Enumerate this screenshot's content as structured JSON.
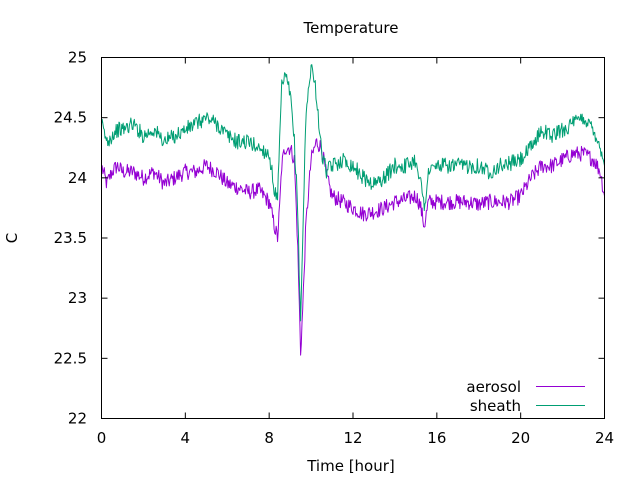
{
  "chart_data": {
    "type": "line",
    "title": "Temperature",
    "xlabel": "Time [hour]",
    "ylabel": "C",
    "xlim": [
      0,
      24
    ],
    "ylim": [
      22,
      25
    ],
    "xticks": [
      0,
      4,
      8,
      12,
      16,
      20,
      24
    ],
    "yticks": [
      22,
      22.5,
      23,
      23.5,
      24,
      24.5,
      25
    ],
    "xtick_labels": [
      "0",
      "4",
      "8",
      "12",
      "16",
      "20",
      "24"
    ],
    "ytick_labels": [
      "22",
      "22.5",
      "23",
      "23.5",
      "24",
      "24.5",
      "25"
    ],
    "grid": false,
    "legend_position": "bottom-right",
    "series": [
      {
        "name": "aerosol",
        "color": "#9400d3",
        "x": [
          0,
          0.25,
          0.5,
          0.75,
          1,
          1.5,
          2,
          2.5,
          3,
          3.5,
          4,
          4.5,
          5,
          5.5,
          6,
          6.5,
          7,
          7.5,
          8,
          8.25,
          8.4,
          8.5,
          8.6,
          8.75,
          9,
          9.2,
          9.35,
          9.5,
          9.6,
          9.75,
          10,
          10.25,
          10.5,
          10.75,
          11,
          11.5,
          12,
          12.5,
          13,
          13.5,
          14,
          14.5,
          15,
          15.2,
          15.4,
          15.6,
          16,
          16.5,
          17,
          17.5,
          18,
          18.5,
          19,
          19.5,
          20,
          20.5,
          21,
          21.5,
          22,
          22.5,
          23,
          23.5,
          23.8,
          24
        ],
        "y": [
          24.1,
          23.95,
          24.05,
          24.1,
          24.05,
          24.05,
          24.0,
          24.05,
          23.95,
          24.0,
          24.05,
          24.05,
          24.1,
          24.05,
          23.95,
          23.92,
          23.88,
          23.9,
          23.8,
          23.6,
          23.5,
          23.75,
          24.1,
          24.25,
          24.25,
          24.15,
          23.5,
          22.55,
          22.9,
          23.6,
          24.15,
          24.3,
          24.25,
          24.0,
          23.85,
          23.8,
          23.75,
          23.7,
          23.72,
          23.75,
          23.8,
          23.82,
          23.85,
          23.78,
          23.6,
          23.8,
          23.8,
          23.8,
          23.8,
          23.8,
          23.78,
          23.8,
          23.8,
          23.8,
          23.85,
          24.0,
          24.1,
          24.1,
          24.15,
          24.2,
          24.2,
          24.15,
          24.05,
          23.85
        ]
      },
      {
        "name": "sheath",
        "color": "#009e73",
        "x": [
          0,
          0.25,
          0.5,
          0.75,
          1,
          1.5,
          2,
          2.5,
          3,
          3.5,
          4,
          4.5,
          5,
          5.5,
          6,
          6.5,
          7,
          7.5,
          8,
          8.25,
          8.4,
          8.5,
          8.6,
          8.75,
          9,
          9.2,
          9.35,
          9.5,
          9.6,
          9.75,
          10,
          10.25,
          10.5,
          10.75,
          11,
          11.5,
          12,
          12.5,
          13,
          13.5,
          14,
          14.5,
          15,
          15.2,
          15.4,
          15.6,
          16,
          16.5,
          17,
          17.5,
          18,
          18.5,
          19,
          19.5,
          20,
          20.5,
          21,
          21.5,
          22,
          22.5,
          23,
          23.5,
          23.8,
          24
        ],
        "y": [
          24.45,
          24.3,
          24.35,
          24.4,
          24.4,
          24.45,
          24.35,
          24.4,
          24.3,
          24.35,
          24.4,
          24.45,
          24.5,
          24.45,
          24.35,
          24.3,
          24.3,
          24.25,
          24.2,
          23.9,
          23.8,
          24.3,
          24.75,
          24.85,
          24.7,
          24.3,
          23.8,
          22.8,
          23.5,
          24.5,
          24.95,
          24.7,
          24.2,
          24.05,
          24.1,
          24.15,
          24.1,
          24.0,
          23.95,
          24.0,
          24.1,
          24.1,
          24.15,
          24.0,
          23.75,
          24.05,
          24.1,
          24.1,
          24.1,
          24.1,
          24.1,
          24.05,
          24.1,
          24.12,
          24.15,
          24.25,
          24.4,
          24.35,
          24.4,
          24.45,
          24.5,
          24.4,
          24.25,
          24.1
        ]
      }
    ]
  }
}
